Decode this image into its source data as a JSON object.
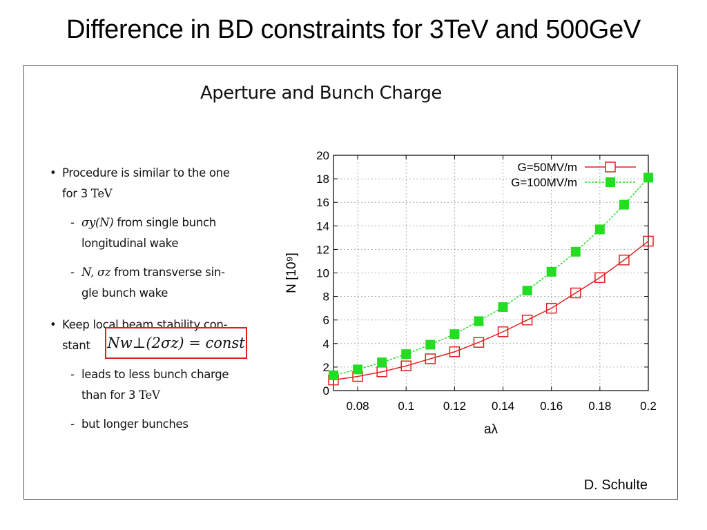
{
  "slide": {
    "title": "Difference in BD constraints for 3TeV and 500GeV",
    "author": "D. Schulte"
  },
  "panel": {
    "title": "Aperture and Bunch Charge",
    "bullets": [
      {
        "line1": "Procedure is similar to the one",
        "line2_prefix": "for 3 ",
        "line2_unit": "TeV",
        "subs": [
          {
            "math": "σy(N)",
            "text1": " from single bunch",
            "text2": "longitudinal wake"
          },
          {
            "math": "N, σz",
            "text1": " from transverse sin-",
            "text2": "gle bunch wake"
          }
        ]
      },
      {
        "line1": "Keep local beam stability con-",
        "line2_prefix": "stant",
        "formula": "Nw⊥(2σz) = const",
        "subs": [
          {
            "text1": "leads to less bunch charge",
            "text2_prefix": "than for 3 ",
            "text2_unit": "TeV"
          },
          {
            "text1": "but longer bunches"
          }
        ]
      }
    ]
  },
  "chart_data": {
    "type": "line",
    "xlabel": "aλ",
    "ylabel": "N [10⁹]",
    "xlim": [
      0.07,
      0.2
    ],
    "ylim": [
      0,
      20
    ],
    "xticks": [
      "0.08",
      "0.1",
      "0.12",
      "0.14",
      "0.16",
      "0.18",
      "0.2"
    ],
    "xtick_values": [
      0.08,
      0.1,
      0.12,
      0.14,
      0.16,
      0.18,
      0.2
    ],
    "yticks": [
      "0",
      "2",
      "4",
      "6",
      "8",
      "10",
      "12",
      "14",
      "16",
      "18",
      "20"
    ],
    "ytick_values": [
      0,
      2,
      4,
      6,
      8,
      10,
      12,
      14,
      16,
      18,
      20
    ],
    "grid": true,
    "legend_position": "top-right",
    "x": [
      0.07,
      0.08,
      0.09,
      0.1,
      0.11,
      0.12,
      0.13,
      0.14,
      0.15,
      0.16,
      0.17,
      0.18,
      0.19,
      0.2
    ],
    "series": [
      {
        "name": "G=50MV/m",
        "color": "#e02020",
        "marker": "open-square",
        "values": [
          0.9,
          1.2,
          1.6,
          2.1,
          2.7,
          3.3,
          4.1,
          5.0,
          6.0,
          7.0,
          8.3,
          9.6,
          11.1,
          12.7
        ]
      },
      {
        "name": "G=100MV/m",
        "color": "#22dd22",
        "marker": "filled-square",
        "values": [
          1.3,
          1.8,
          2.4,
          3.1,
          3.9,
          4.8,
          5.9,
          7.1,
          8.5,
          10.1,
          11.8,
          13.7,
          15.8,
          18.1
        ]
      }
    ]
  }
}
